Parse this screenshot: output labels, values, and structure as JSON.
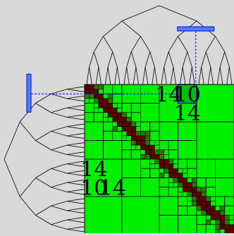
{
  "colors": {
    "background": "#d9d9d9",
    "block_lowrank": "#00f000",
    "block_highlight": "#00c000",
    "block_dense": "#5c0000",
    "block_mid": "#2a7a00",
    "grid_line": "#000000",
    "tree_line": "#000000",
    "indicator_line": "#0000ff",
    "indicator_fill": "#4f7dff"
  },
  "diagram": {
    "depth": 5,
    "leaves": 32,
    "labels": [
      {
        "id": "b-0-4",
        "text": "14",
        "row": 0,
        "col": 4,
        "size": 4
      },
      {
        "id": "b-0-5",
        "text": "10",
        "row": 0,
        "col": 5,
        "size": 4,
        "highlight": true
      },
      {
        "id": "b-1-5",
        "text": "14",
        "row": 1,
        "col": 5,
        "size": 4
      },
      {
        "id": "b-4-0",
        "text": "14",
        "row": 4,
        "col": 0,
        "size": 4
      },
      {
        "id": "b-5-0",
        "text": "10",
        "row": 5,
        "col": 0,
        "size": 4
      },
      {
        "id": "b-5-1",
        "text": "14",
        "row": 5,
        "col": 1,
        "size": 4
      }
    ],
    "highlight_block": {
      "row": 0,
      "col": 5
    }
  }
}
